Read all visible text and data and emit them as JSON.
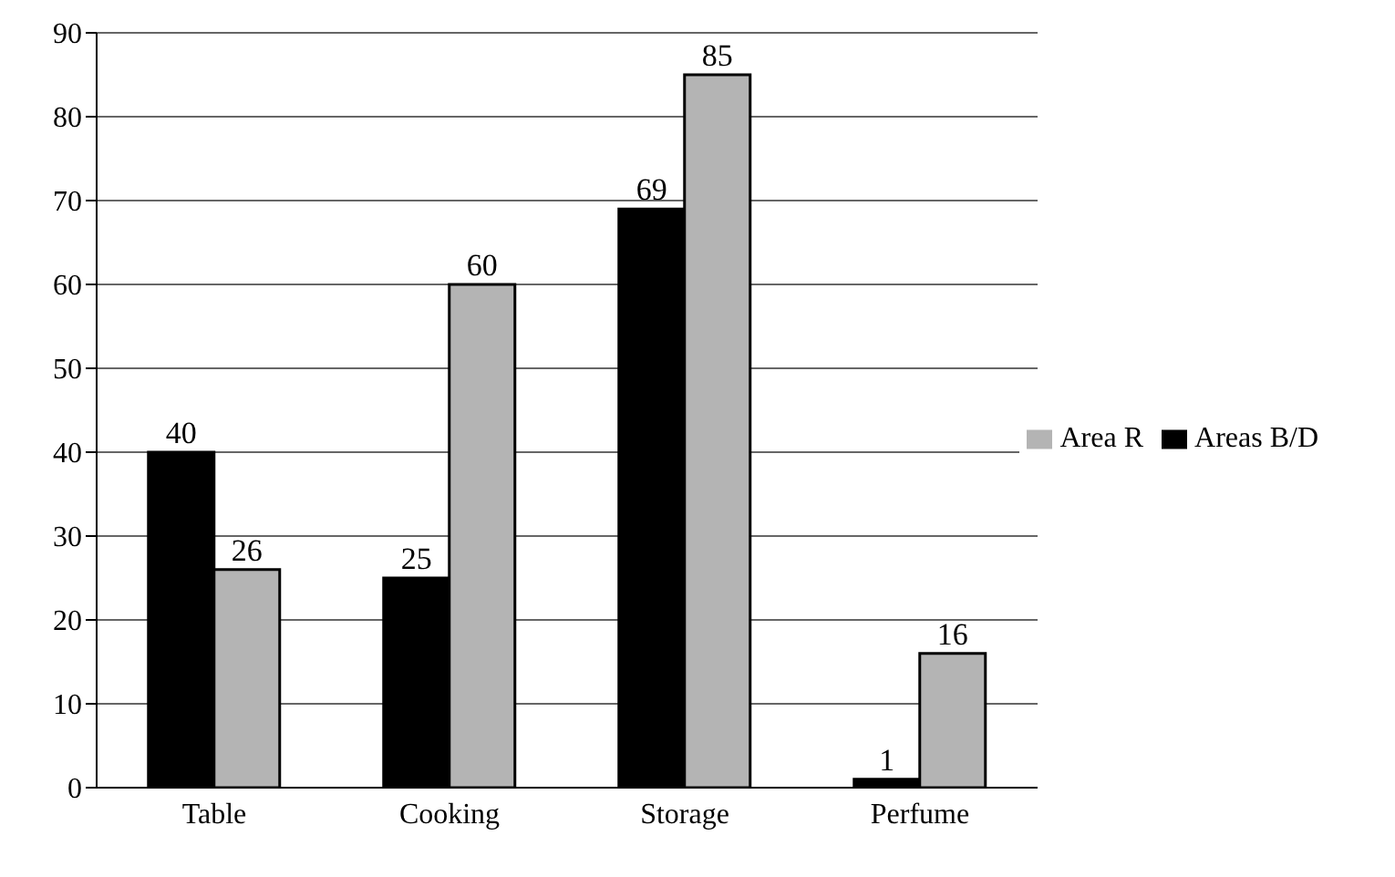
{
  "chart_data": {
    "type": "bar",
    "categories": [
      "Table",
      "Cooking",
      "Storage",
      "Perfume"
    ],
    "series": [
      {
        "name": "Areas B/D",
        "color": "#000000",
        "values": [
          40,
          25,
          69,
          1
        ]
      },
      {
        "name": "Area R",
        "color": "#b4b4b4",
        "values": [
          26,
          60,
          85,
          16
        ]
      }
    ],
    "ylim": [
      0,
      90
    ],
    "yticks": [
      0,
      10,
      20,
      30,
      40,
      50,
      60,
      70,
      80,
      90
    ],
    "grid": "y",
    "legend": "right",
    "data_labels": true
  }
}
